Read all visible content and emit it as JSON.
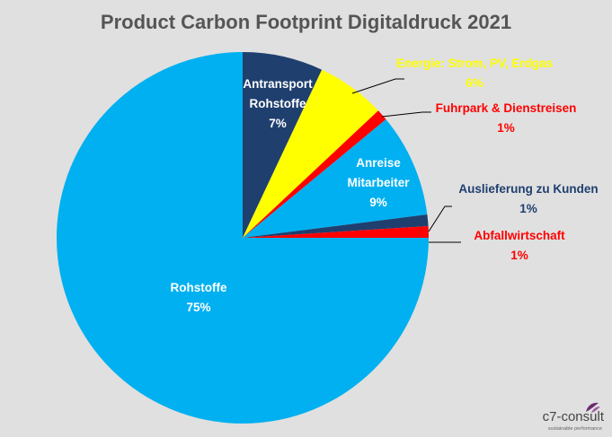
{
  "chart_data": {
    "type": "pie",
    "title": "Product Carbon Footprint Digitaldruck 2021",
    "slices": [
      {
        "label": "Antransport Rohstoffe",
        "value": 7,
        "value_label": "7%",
        "color": "#1f3f6f",
        "label_color": "#ffffff"
      },
      {
        "label": "Energie: Strom, PV, Erdgas",
        "value": 6,
        "value_label": "6%",
        "color": "#ffff00",
        "label_color": "#ffff00"
      },
      {
        "label": "Fuhrpark & Dienstreisen",
        "value": 1,
        "value_label": "1%",
        "color": "#ff0000",
        "label_color": "#ff0000"
      },
      {
        "label": "Anreise Mitarbeiter",
        "value": 9,
        "value_label": "9%",
        "color": "#00b0f0",
        "label_color": "#ffffff"
      },
      {
        "label": "Auslieferung zu Kunden",
        "value": 1,
        "value_label": "1%",
        "color": "#1f3f6f",
        "label_color": "#1f3f6f"
      },
      {
        "label": "Abfallwirtschaft",
        "value": 1,
        "value_label": "1%",
        "color": "#ff0000",
        "label_color": "#ff0000"
      },
      {
        "label": "Rohstoffe",
        "value": 75,
        "value_label": "75%",
        "color": "#00b0f0",
        "label_color": "#ffffff"
      }
    ]
  },
  "logo": {
    "name": "c7-consult",
    "tagline": "sustainable performance"
  }
}
